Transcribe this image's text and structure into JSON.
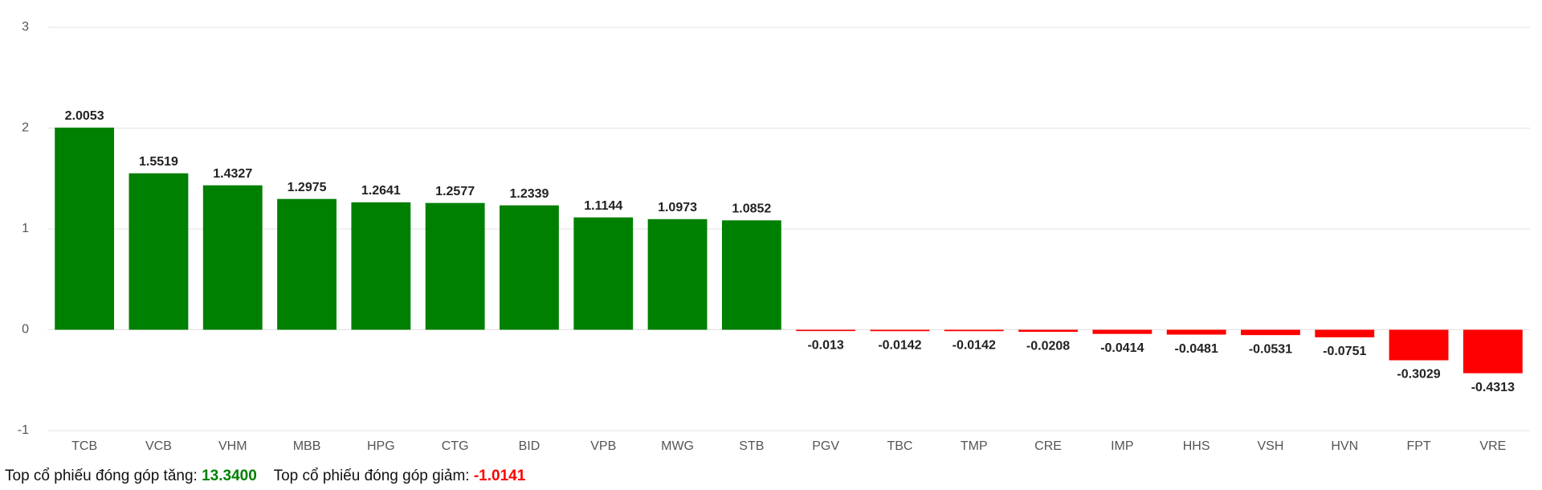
{
  "chart_data": {
    "type": "bar",
    "categories": [
      "TCB",
      "VCB",
      "VHM",
      "MBB",
      "HPG",
      "CTG",
      "BID",
      "VPB",
      "MWG",
      "STB",
      "PGV",
      "TBC",
      "TMP",
      "CRE",
      "IMP",
      "HHS",
      "VSH",
      "HVN",
      "FPT",
      "VRE"
    ],
    "values": [
      2.0053,
      1.5519,
      1.4327,
      1.2975,
      1.2641,
      1.2577,
      1.2339,
      1.1144,
      1.0973,
      1.0852,
      -0.013,
      -0.0142,
      -0.0142,
      -0.0208,
      -0.0414,
      -0.0481,
      -0.0531,
      -0.0751,
      -0.3029,
      -0.4313
    ],
    "positive_color": "#008000",
    "negative_color": "#ff0000",
    "ylim": [
      -1,
      3
    ],
    "yticks": [
      -1,
      0,
      1,
      2,
      3
    ],
    "grid": true
  },
  "summary": {
    "gain_label": "Top cổ phiếu đóng góp tăng:",
    "gain_value": "13.3400",
    "loss_label": "Top cổ phiếu đóng góp giảm:",
    "loss_value": "-1.0141"
  }
}
